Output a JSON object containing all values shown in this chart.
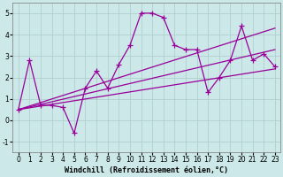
{
  "xlabel": "Windchill (Refroidissement éolien,°C)",
  "background_color": "#cce8e8",
  "line_color": "#990099",
  "grid_color": "#aacccc",
  "x_data": [
    0,
    1,
    2,
    3,
    4,
    5,
    6,
    7,
    8,
    9,
    10,
    11,
    12,
    13,
    14,
    15,
    16,
    17,
    18,
    19,
    20,
    21,
    22,
    23
  ],
  "main_y": [
    0.5,
    2.8,
    0.7,
    0.7,
    0.6,
    -0.6,
    1.5,
    2.3,
    1.5,
    2.6,
    3.5,
    5.0,
    5.0,
    4.8,
    3.5,
    3.3,
    3.3,
    1.3,
    2.0,
    2.8,
    4.4,
    2.8,
    3.1,
    2.5
  ],
  "reg_upper_start": 0.5,
  "reg_upper_end": 4.3,
  "reg_mid_start": 0.5,
  "reg_mid_end": 3.3,
  "reg_lower_start": 0.5,
  "reg_lower_end": 2.4,
  "ylim": [
    -1.5,
    5.5
  ],
  "yticks": [
    -1,
    0,
    1,
    2,
    3,
    4,
    5
  ],
  "xticks": [
    0,
    1,
    2,
    3,
    4,
    5,
    6,
    7,
    8,
    9,
    10,
    11,
    12,
    13,
    14,
    15,
    16,
    17,
    18,
    19,
    20,
    21,
    22,
    23
  ],
  "figsize": [
    3.2,
    2.0
  ],
  "dpi": 100,
  "marker": "+",
  "markersize": 4,
  "linewidth": 0.9,
  "xlabel_fontsize": 6.0,
  "tick_fontsize": 5.5
}
